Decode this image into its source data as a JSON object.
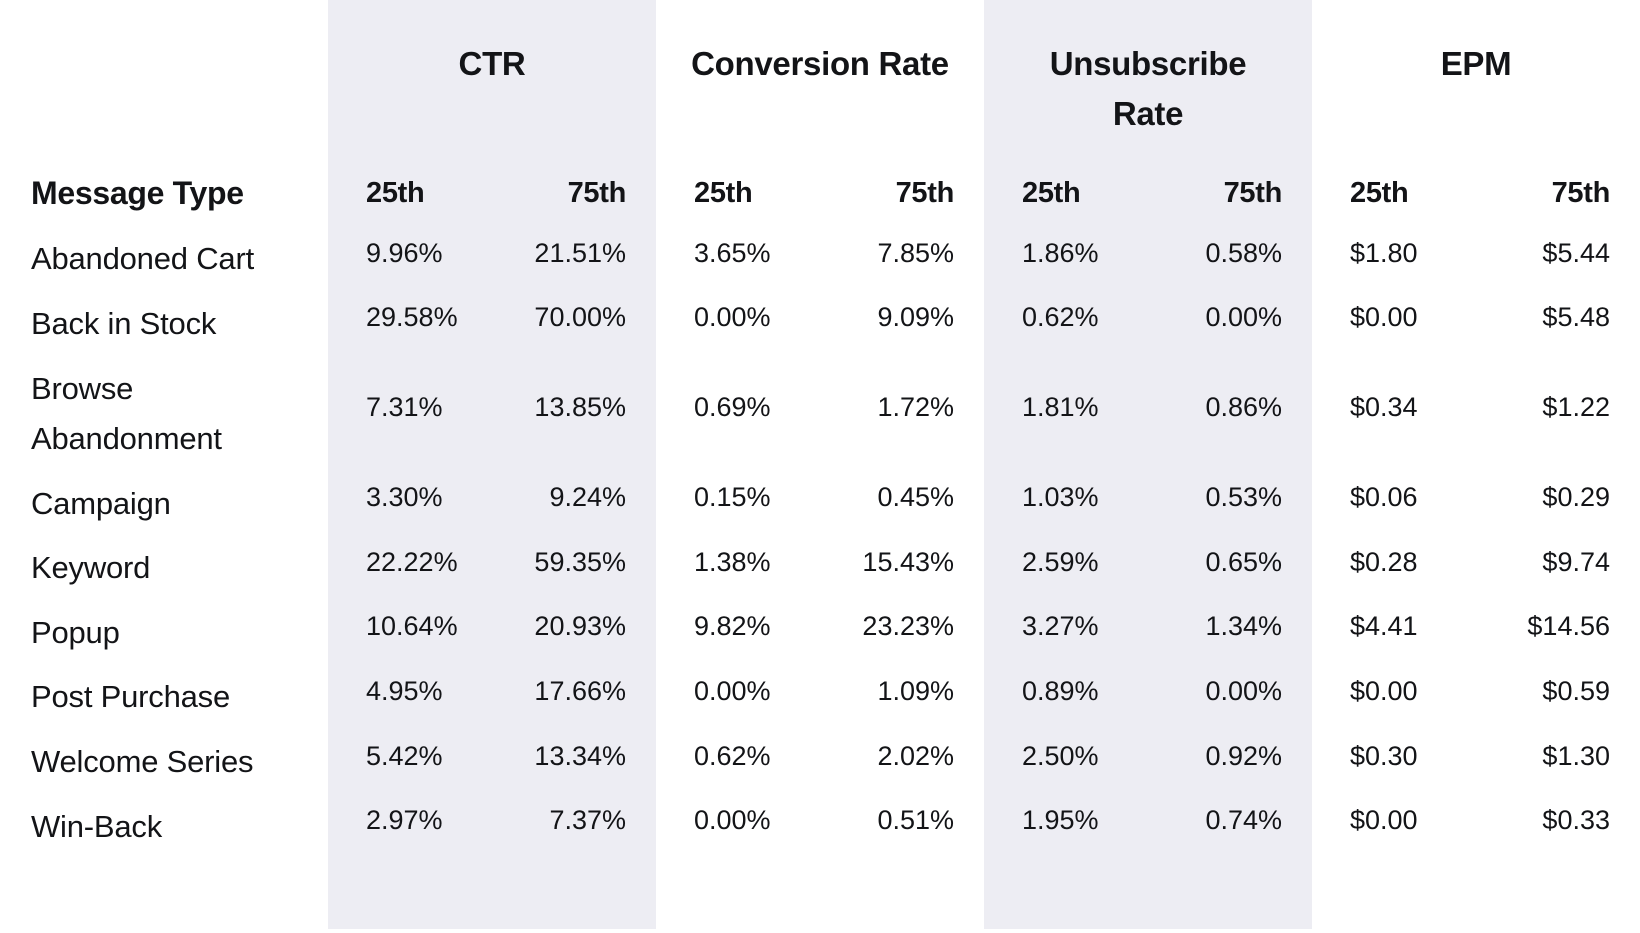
{
  "table": {
    "message_type_header": "Message Type",
    "sub_headers": [
      "25th",
      "75th"
    ],
    "groups": [
      {
        "label": "CTR"
      },
      {
        "label": "Conversion Rate"
      },
      {
        "label": "Unsubscribe Rate"
      },
      {
        "label": "EPM"
      }
    ],
    "rows": [
      {
        "label": "Abandoned Cart",
        "values": [
          "9.96%",
          "21.51%",
          "3.65%",
          "7.85%",
          "1.86%",
          "0.58%",
          "$1.80",
          "$5.44"
        ]
      },
      {
        "label": "Back in Stock",
        "values": [
          "29.58%",
          "70.00%",
          "0.00%",
          "9.09%",
          "0.62%",
          "0.00%",
          "$0.00",
          "$5.48"
        ]
      },
      {
        "label": "Browse Abandonment",
        "values": [
          "7.31%",
          "13.85%",
          "0.69%",
          "1.72%",
          "1.81%",
          "0.86%",
          "$0.34",
          "$1.22"
        ]
      },
      {
        "label": "Campaign",
        "values": [
          "3.30%",
          "9.24%",
          "0.15%",
          "0.45%",
          "1.03%",
          "0.53%",
          "$0.06",
          "$0.29"
        ]
      },
      {
        "label": "Keyword",
        "values": [
          "22.22%",
          "59.35%",
          "1.38%",
          "15.43%",
          "2.59%",
          "0.65%",
          "$0.28",
          "$9.74"
        ]
      },
      {
        "label": "Popup",
        "values": [
          "10.64%",
          "20.93%",
          "9.82%",
          "23.23%",
          "3.27%",
          "1.34%",
          "$4.41",
          "$14.56"
        ]
      },
      {
        "label": "Post Purchase",
        "values": [
          "4.95%",
          "17.66%",
          "0.00%",
          "1.09%",
          "0.89%",
          "0.00%",
          "$0.00",
          "$0.59"
        ]
      },
      {
        "label": "Welcome Series",
        "values": [
          "5.42%",
          "13.34%",
          "0.62%",
          "2.02%",
          "2.50%",
          "0.92%",
          "$0.30",
          "$1.30"
        ]
      },
      {
        "label": "Win-Back",
        "values": [
          "2.97%",
          "7.37%",
          "0.00%",
          "0.51%",
          "1.95%",
          "0.74%",
          "$0.00",
          "$0.33"
        ]
      }
    ]
  },
  "colors": {
    "page_background": "#ffffff",
    "band_background": "#ededf3",
    "text": "#131417"
  },
  "chart_data": {
    "type": "table",
    "title": "",
    "column_groups": [
      "CTR",
      "Conversion Rate",
      "Unsubscribe Rate",
      "EPM"
    ],
    "columns": [
      "Message Type",
      "CTR 25th",
      "CTR 75th",
      "Conversion Rate 25th",
      "Conversion Rate 75th",
      "Unsubscribe Rate 25th",
      "Unsubscribe Rate 75th",
      "EPM 25th",
      "EPM 75th"
    ],
    "rows": [
      [
        "Abandoned Cart",
        "9.96%",
        "21.51%",
        "3.65%",
        "7.85%",
        "1.86%",
        "0.58%",
        "$1.80",
        "$5.44"
      ],
      [
        "Back in Stock",
        "29.58%",
        "70.00%",
        "0.00%",
        "9.09%",
        "0.62%",
        "0.00%",
        "$0.00",
        "$5.48"
      ],
      [
        "Browse Abandonment",
        "7.31%",
        "13.85%",
        "0.69%",
        "1.72%",
        "1.81%",
        "0.86%",
        "$0.34",
        "$1.22"
      ],
      [
        "Campaign",
        "3.30%",
        "9.24%",
        "0.15%",
        "0.45%",
        "1.03%",
        "0.53%",
        "$0.06",
        "$0.29"
      ],
      [
        "Keyword",
        "22.22%",
        "59.35%",
        "1.38%",
        "15.43%",
        "2.59%",
        "0.65%",
        "$0.28",
        "$9.74"
      ],
      [
        "Popup",
        "10.64%",
        "20.93%",
        "9.82%",
        "23.23%",
        "3.27%",
        "1.34%",
        "$4.41",
        "$14.56"
      ],
      [
        "Post Purchase",
        "4.95%",
        "17.66%",
        "0.00%",
        "1.09%",
        "0.89%",
        "0.00%",
        "$0.00",
        "$0.59"
      ],
      [
        "Welcome Series",
        "5.42%",
        "13.34%",
        "0.62%",
        "2.02%",
        "2.50%",
        "0.92%",
        "$0.30",
        "$1.30"
      ],
      [
        "Win-Back",
        "2.97%",
        "7.37%",
        "0.00%",
        "0.51%",
        "1.95%",
        "0.74%",
        "$0.00",
        "$0.33"
      ]
    ]
  }
}
